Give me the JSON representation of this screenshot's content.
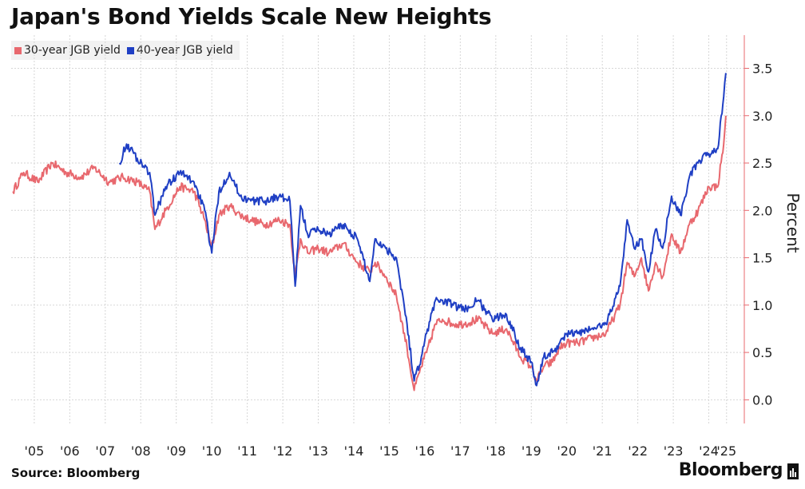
{
  "header": {
    "title": "Japan's Bond Yields Scale New Heights"
  },
  "footer": {
    "source": "Source: Bloomberg",
    "brand": "Bloomberg"
  },
  "colors": {
    "series30": "#e8686e",
    "series40": "#1f3fc4",
    "grid": "#d6d6d6",
    "axis": "#e8686e"
  },
  "chart_data": {
    "type": "line",
    "title": "Japan's Bond Yields Scale New Heights",
    "ylabel": "Percent",
    "xlabel": "",
    "ylim": [
      -0.25,
      3.85
    ],
    "yticks": [
      0.0,
      0.5,
      1.0,
      1.5,
      2.0,
      2.5,
      3.0,
      3.5
    ],
    "ytick_labels": [
      "0.0",
      "0.5",
      "1.0",
      "1.5",
      "2.0",
      "2.5",
      "3.0",
      "3.5"
    ],
    "xlim": [
      2004.85,
      2025.5
    ],
    "xticks": [
      2005.5,
      2006.5,
      2007.5,
      2008.5,
      2009.5,
      2010.5,
      2011.5,
      2012.5,
      2013.5,
      2014.5,
      2015.5,
      2016.5,
      2017.5,
      2018.5,
      2019.5,
      2020.5,
      2021.5,
      2022.5,
      2023.5,
      2024.5,
      2025.0
    ],
    "xtick_labels": [
      "'05",
      "'06",
      "'07",
      "'08",
      "'09",
      "'10",
      "'11",
      "'12",
      "'13",
      "'14",
      "'15",
      "'16",
      "'17",
      "'18",
      "'19",
      "'20",
      "'21",
      "'22",
      "'23",
      "'24",
      "'25"
    ],
    "grid": true,
    "y_axis_side": "right",
    "legend_position": "top-left",
    "series": [
      {
        "name": "30-year JGB yield",
        "color": "#e8686e",
        "x": [
          2004.9,
          2005.2,
          2005.6,
          2006.0,
          2006.4,
          2006.8,
          2007.2,
          2007.6,
          2008.0,
          2008.4,
          2008.75,
          2008.9,
          2009.2,
          2009.6,
          2010.0,
          2010.3,
          2010.5,
          2010.7,
          2011.0,
          2011.3,
          2011.6,
          2012.0,
          2012.4,
          2012.7,
          2012.85,
          2013.0,
          2013.2,
          2013.5,
          2013.8,
          2014.2,
          2014.6,
          2014.95,
          2015.1,
          2015.4,
          2015.7,
          2016.0,
          2016.2,
          2016.4,
          2016.55,
          2016.8,
          2017.0,
          2017.3,
          2017.6,
          2018.0,
          2018.4,
          2018.8,
          2019.2,
          2019.5,
          2019.65,
          2019.85,
          2020.1,
          2020.3,
          2020.5,
          2020.8,
          2021.2,
          2021.6,
          2022.0,
          2022.2,
          2022.4,
          2022.6,
          2022.8,
          2023.0,
          2023.2,
          2023.45,
          2023.7,
          2023.95,
          2024.2,
          2024.5,
          2024.75,
          2024.92,
          2024.98
        ],
        "y": [
          2.2,
          2.4,
          2.3,
          2.5,
          2.4,
          2.35,
          2.45,
          2.3,
          2.35,
          2.3,
          2.2,
          1.8,
          2.0,
          2.25,
          2.2,
          1.9,
          1.6,
          1.95,
          2.05,
          1.95,
          1.9,
          1.85,
          1.9,
          1.85,
          1.3,
          1.7,
          1.55,
          1.6,
          1.55,
          1.65,
          1.45,
          1.35,
          1.45,
          1.3,
          1.1,
          0.55,
          0.1,
          0.35,
          0.5,
          0.8,
          0.85,
          0.8,
          0.8,
          0.85,
          0.7,
          0.75,
          0.45,
          0.35,
          0.2,
          0.35,
          0.4,
          0.55,
          0.6,
          0.6,
          0.65,
          0.7,
          1.0,
          1.45,
          1.3,
          1.5,
          1.15,
          1.45,
          1.3,
          1.75,
          1.55,
          1.85,
          2.0,
          2.25,
          2.25,
          2.7,
          3.0
        ]
      },
      {
        "name": "40-year JGB yield",
        "color": "#1f3fc4",
        "x": [
          2007.9,
          2008.1,
          2008.4,
          2008.75,
          2008.9,
          2009.2,
          2009.6,
          2010.0,
          2010.3,
          2010.5,
          2010.7,
          2011.0,
          2011.3,
          2011.6,
          2012.0,
          2012.4,
          2012.7,
          2012.85,
          2013.0,
          2013.2,
          2013.5,
          2013.8,
          2014.2,
          2014.6,
          2014.95,
          2015.1,
          2015.4,
          2015.7,
          2016.0,
          2016.2,
          2016.4,
          2016.55,
          2016.8,
          2017.0,
          2017.3,
          2017.6,
          2018.0,
          2018.4,
          2018.8,
          2019.2,
          2019.5,
          2019.65,
          2019.85,
          2020.1,
          2020.3,
          2020.5,
          2020.8,
          2021.2,
          2021.6,
          2022.0,
          2022.2,
          2022.4,
          2022.6,
          2022.8,
          2023.0,
          2023.2,
          2023.45,
          2023.7,
          2023.95,
          2024.2,
          2024.5,
          2024.75,
          2024.92,
          2024.98
        ],
        "y": [
          2.5,
          2.7,
          2.55,
          2.4,
          1.95,
          2.25,
          2.4,
          2.3,
          2.0,
          1.55,
          2.2,
          2.4,
          2.15,
          2.1,
          2.1,
          2.15,
          2.1,
          1.2,
          2.05,
          1.75,
          1.8,
          1.75,
          1.85,
          1.7,
          1.25,
          1.7,
          1.6,
          1.5,
          0.8,
          0.2,
          0.45,
          0.7,
          1.05,
          1.05,
          1.0,
          0.95,
          1.05,
          0.85,
          0.9,
          0.55,
          0.4,
          0.15,
          0.45,
          0.5,
          0.6,
          0.7,
          0.7,
          0.75,
          0.8,
          1.2,
          1.9,
          1.6,
          1.7,
          1.35,
          1.8,
          1.6,
          2.15,
          1.95,
          2.35,
          2.5,
          2.6,
          2.65,
          3.2,
          3.45
        ]
      }
    ]
  }
}
